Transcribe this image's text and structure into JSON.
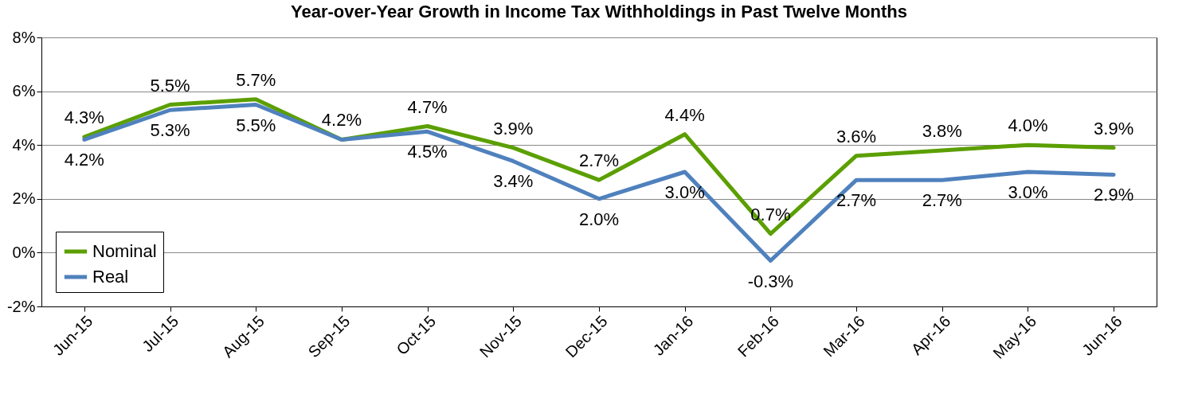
{
  "chart_data": {
    "type": "line",
    "title": "Year-over-Year Growth in Income Tax Withholdings in Past Twelve Months",
    "categories": [
      "Jun-15",
      "Jul-15",
      "Aug-15",
      "Sep-15",
      "Oct-15",
      "Nov-15",
      "Dec-15",
      "Jan-16",
      "Feb-16",
      "Mar-16",
      "Apr-16",
      "May-16",
      "Jun-16"
    ],
    "series": [
      {
        "name": "Nominal",
        "color": "#5b9f00",
        "values": [
          4.3,
          5.5,
          5.7,
          4.2,
          4.7,
          3.9,
          2.7,
          4.4,
          0.7,
          3.6,
          3.8,
          4.0,
          3.9
        ],
        "value_labels": [
          "4.3%",
          "5.5%",
          "5.7%",
          "4.2%",
          "4.7%",
          "3.9%",
          "2.7%",
          "4.4%",
          "0.7%",
          "3.6%",
          "3.8%",
          "4.0%",
          "3.9%"
        ]
      },
      {
        "name": "Real",
        "color": "#4f81bd",
        "values": [
          4.2,
          5.3,
          5.5,
          4.2,
          4.5,
          3.4,
          2.0,
          3.0,
          -0.3,
          2.7,
          2.7,
          3.0,
          2.9
        ],
        "value_labels": [
          "4.2%",
          "5.3%",
          "5.5%",
          null,
          "4.5%",
          "3.4%",
          "2.0%",
          "3.0%",
          "-0.3%",
          "2.7%",
          "2.7%",
          "3.0%",
          "2.9%"
        ]
      }
    ],
    "ylim": [
      -2,
      8
    ],
    "yticks": [
      {
        "value": -2,
        "label": "-2%"
      },
      {
        "value": 0,
        "label": "0%"
      },
      {
        "value": 2,
        "label": "2%"
      },
      {
        "value": 4,
        "label": "4%"
      },
      {
        "value": 6,
        "label": "6%"
      },
      {
        "value": 8,
        "label": "8%"
      }
    ],
    "grid": "y",
    "legend": "bottom left",
    "marker": "none",
    "line_style": "solid"
  }
}
